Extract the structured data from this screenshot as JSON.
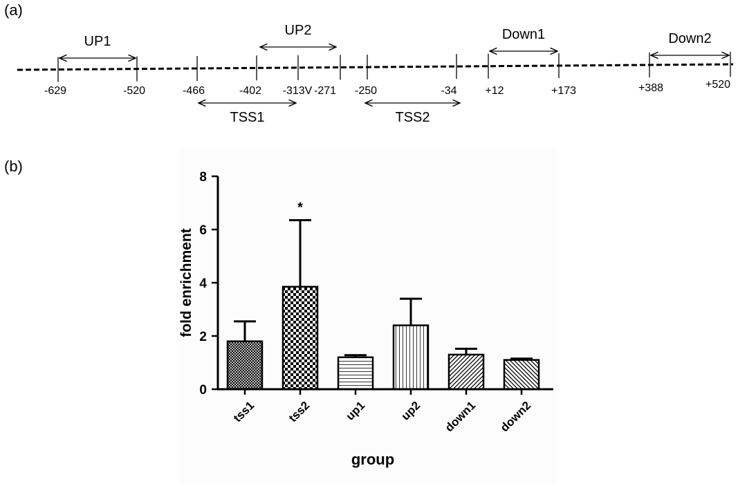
{
  "panels": {
    "a": "(a)",
    "b": "(b)"
  },
  "map": {
    "regions": [
      {
        "id": "up1",
        "label": "UP1",
        "position": "above"
      },
      {
        "id": "up2",
        "label": "UP2",
        "position": "above"
      },
      {
        "id": "down1",
        "label": "Down1",
        "position": "above"
      },
      {
        "id": "down2",
        "label": "Down2",
        "position": "above"
      },
      {
        "id": "tss1",
        "label": "TSS1",
        "position": "below"
      },
      {
        "id": "tss2",
        "label": "TSS2",
        "position": "below"
      }
    ],
    "coordinates": [
      "-629",
      "-520",
      "-466",
      "-402",
      "-313V",
      "-271",
      "-250",
      "-34",
      "+12",
      "+173",
      "+388",
      "+520"
    ]
  },
  "chart_data": {
    "type": "bar",
    "categories": [
      "tss1",
      "tss2",
      "up1",
      "up2",
      "down1",
      "down2"
    ],
    "values": [
      1.8,
      3.85,
      1.2,
      2.4,
      1.3,
      1.1
    ],
    "error_upper": [
      2.55,
      6.35,
      1.28,
      3.4,
      1.52,
      1.15
    ],
    "patterns": [
      "crosshatch",
      "checker",
      "hlines",
      "vlines",
      "diag-right",
      "diag-left"
    ],
    "significance": [
      "",
      "*",
      "",
      "",
      "",
      ""
    ],
    "xlabel": "group",
    "ylabel": "fold enrichment",
    "yticks": [
      "0",
      "2",
      "4",
      "6",
      "8"
    ],
    "ylim": [
      0,
      8
    ],
    "grid": false
  }
}
